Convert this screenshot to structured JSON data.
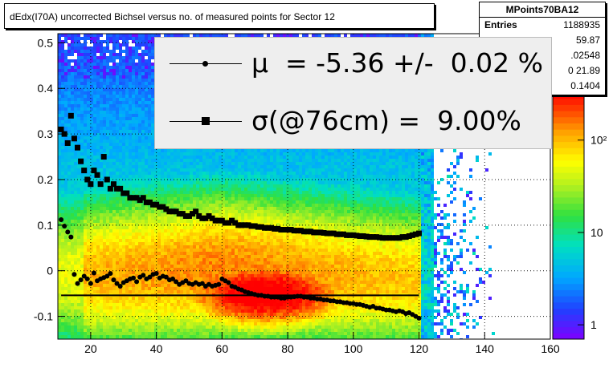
{
  "title": "dEdx(I70A) uncorrected Bichsel versus no. of measured points for Sector 12",
  "stats": {
    "name": "MPoints70BA12",
    "rows": [
      {
        "key": "Entries",
        "value": "1188935"
      },
      {
        "key": "",
        "value": "59.87"
      },
      {
        "key": "",
        "value": ".02548"
      },
      {
        "key": "",
        "value": "0 21.89"
      },
      {
        "key": "",
        "value": "0.1404"
      }
    ]
  },
  "legend": {
    "mu_text": "μ  = -5.36 +/-  0.02 %",
    "sigma_text": "σ(@76cm) =  9.00%"
  },
  "colors": {
    "frame": "#000000",
    "mean_markers": "#000000",
    "sigma_markers": "#000000",
    "legend_bg": "#eeeeee"
  },
  "chart_data": {
    "type": "heatmap",
    "title": "dEdx(I70A) uncorrected Bichsel versus no. of measured points for Sector 12",
    "xlabel": "",
    "ylabel": "",
    "xlim": [
      10,
      160
    ],
    "ylim": [
      -0.15,
      0.52
    ],
    "x_ticks": [
      20,
      40,
      60,
      80,
      100,
      120,
      140,
      160
    ],
    "y_ticks": [
      -0.1,
      0,
      0.1,
      0.2,
      0.3,
      0.4,
      0.5
    ],
    "y_tick_labels": [
      "-0.1",
      "0",
      "0.1",
      "0.2",
      "0.3",
      "0.4",
      "0.5"
    ],
    "z_scale": "log",
    "z_ticks": [
      1,
      10,
      100
    ],
    "z_tick_labels": [
      "1",
      "10",
      "10²"
    ],
    "grid": true,
    "fit_line": {
      "x": [
        11,
        120
      ],
      "y": [
        -0.054,
        -0.054
      ]
    },
    "series": [
      {
        "marker": "circle",
        "x": [
          11,
          12,
          13,
          14,
          15,
          16,
          17,
          18,
          19,
          20,
          21,
          22,
          23,
          24,
          25,
          26,
          27,
          28,
          29,
          30,
          31,
          32,
          33,
          34,
          35,
          36,
          37,
          38,
          39,
          40,
          41,
          42,
          43,
          44,
          45,
          46,
          47,
          48,
          49,
          50,
          51,
          52,
          53,
          54,
          55,
          56,
          57,
          58,
          59,
          60,
          61,
          62,
          63,
          64,
          65,
          66,
          67,
          68,
          69,
          70,
          71,
          72,
          73,
          74,
          75,
          76,
          77,
          78,
          79,
          80,
          81,
          82,
          83,
          84,
          85,
          86,
          87,
          88,
          89,
          90,
          91,
          92,
          93,
          94,
          95,
          96,
          97,
          98,
          99,
          100,
          101,
          102,
          103,
          104,
          105,
          106,
          107,
          108,
          109,
          110,
          111,
          112,
          113,
          114,
          115,
          116,
          117,
          118,
          119,
          120
        ],
        "y": [
          0.112,
          0.098,
          0.085,
          0.074,
          -0.008,
          -0.028,
          -0.02,
          -0.012,
          -0.018,
          -0.028,
          -0.005,
          -0.022,
          -0.018,
          -0.015,
          -0.012,
          -0.006,
          -0.02,
          -0.028,
          -0.034,
          -0.026,
          -0.022,
          -0.018,
          -0.016,
          -0.024,
          -0.014,
          -0.01,
          -0.018,
          -0.014,
          -0.008,
          -0.006,
          -0.016,
          -0.012,
          -0.014,
          -0.02,
          -0.018,
          -0.024,
          -0.03,
          -0.026,
          -0.022,
          -0.028,
          -0.03,
          -0.026,
          -0.03,
          -0.028,
          -0.034,
          -0.03,
          -0.034,
          -0.032,
          -0.03,
          -0.018,
          -0.022,
          -0.026,
          -0.034,
          -0.036,
          -0.04,
          -0.042,
          -0.046,
          -0.048,
          -0.05,
          -0.052,
          -0.054,
          -0.054,
          -0.056,
          -0.056,
          -0.058,
          -0.058,
          -0.058,
          -0.06,
          -0.06,
          -0.058,
          -0.058,
          -0.057,
          -0.056,
          -0.056,
          -0.058,
          -0.058,
          -0.06,
          -0.06,
          -0.062,
          -0.062,
          -0.064,
          -0.064,
          -0.066,
          -0.066,
          -0.068,
          -0.068,
          -0.07,
          -0.07,
          -0.072,
          -0.072,
          -0.074,
          -0.074,
          -0.076,
          -0.078,
          -0.08,
          -0.078,
          -0.082,
          -0.082,
          -0.084,
          -0.086,
          -0.086,
          -0.088,
          -0.09,
          -0.088,
          -0.09,
          -0.094,
          -0.092,
          -0.096,
          -0.1,
          -0.104
        ]
      },
      {
        "marker": "square",
        "x": [
          11,
          12,
          13,
          14,
          15,
          16,
          17,
          18,
          19,
          20,
          21,
          22,
          23,
          24,
          25,
          26,
          27,
          28,
          29,
          30,
          31,
          32,
          33,
          34,
          35,
          36,
          37,
          38,
          39,
          40,
          41,
          42,
          43,
          44,
          45,
          46,
          47,
          48,
          49,
          50,
          51,
          52,
          53,
          54,
          55,
          56,
          57,
          58,
          59,
          60,
          61,
          62,
          63,
          64,
          65,
          66,
          67,
          68,
          69,
          70,
          71,
          72,
          73,
          74,
          75,
          76,
          77,
          78,
          79,
          80,
          81,
          82,
          83,
          84,
          85,
          86,
          87,
          88,
          89,
          90,
          91,
          92,
          93,
          94,
          95,
          96,
          97,
          98,
          99,
          100,
          101,
          102,
          103,
          104,
          105,
          106,
          107,
          108,
          109,
          110,
          111,
          112,
          113,
          114,
          115,
          116,
          117,
          118,
          119,
          120
        ],
        "y": [
          0.31,
          0.3,
          0.28,
          0.34,
          0.29,
          0.27,
          0.24,
          0.22,
          0.2,
          0.19,
          0.22,
          0.21,
          0.19,
          0.25,
          0.2,
          0.18,
          0.19,
          0.18,
          0.18,
          0.17,
          0.17,
          0.16,
          0.16,
          0.16,
          0.155,
          0.16,
          0.15,
          0.15,
          0.145,
          0.145,
          0.14,
          0.14,
          0.135,
          0.13,
          0.13,
          0.13,
          0.125,
          0.125,
          0.12,
          0.12,
          0.125,
          0.13,
          0.12,
          0.115,
          0.115,
          0.12,
          0.115,
          0.11,
          0.11,
          0.11,
          0.105,
          0.105,
          0.11,
          0.105,
          0.1,
          0.1,
          0.1,
          0.1,
          0.098,
          0.098,
          0.096,
          0.096,
          0.094,
          0.094,
          0.094,
          0.092,
          0.092,
          0.09,
          0.09,
          0.09,
          0.09,
          0.088,
          0.088,
          0.088,
          0.086,
          0.086,
          0.086,
          0.084,
          0.084,
          0.084,
          0.083,
          0.082,
          0.082,
          0.082,
          0.08,
          0.08,
          0.08,
          0.078,
          0.078,
          0.078,
          0.077,
          0.076,
          0.076,
          0.075,
          0.074,
          0.074,
          0.074,
          0.073,
          0.072,
          0.072,
          0.072,
          0.072,
          0.072,
          0.072,
          0.074,
          0.074,
          0.076,
          0.078,
          0.08,
          0.082
        ]
      }
    ]
  }
}
